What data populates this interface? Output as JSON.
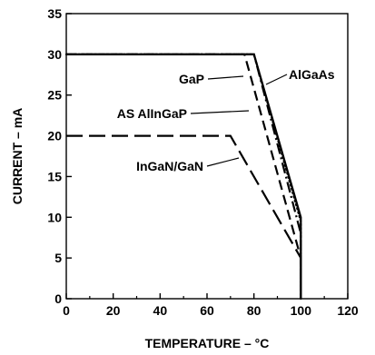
{
  "chart_data": {
    "type": "line",
    "xlabel": "TEMPERATURE – °C",
    "ylabel": "CURRENT – mA",
    "xlim": [
      0,
      120
    ],
    "ylim": [
      0,
      35
    ],
    "xticks": [
      0,
      20,
      40,
      60,
      80,
      100,
      120
    ],
    "yticks": [
      0,
      5,
      10,
      15,
      20,
      25,
      30,
      35
    ],
    "grid": false,
    "series": [
      {
        "name": "AlGaAs",
        "style": "solid",
        "color": "#000000",
        "points": [
          [
            0,
            30
          ],
          [
            80,
            30
          ],
          [
            100,
            10
          ],
          [
            100,
            0
          ]
        ]
      },
      {
        "name": "GaP",
        "style": "dotted",
        "color": "#000000",
        "points": [
          [
            0,
            30
          ],
          [
            80,
            30
          ],
          [
            100,
            9.5
          ],
          [
            100,
            0
          ]
        ]
      },
      {
        "name": "AS AlInGaP",
        "style": "dash-dot",
        "color": "#000000",
        "points": [
          [
            0,
            30
          ],
          [
            80,
            30
          ],
          [
            100,
            8
          ],
          [
            100,
            0
          ]
        ]
      },
      {
        "name": "InGaN/GaN",
        "style": "long-dash",
        "color": "#000000",
        "points": [
          [
            0,
            20
          ],
          [
            70,
            20
          ],
          [
            100,
            5
          ],
          [
            100,
            0
          ]
        ]
      },
      {
        "name": "",
        "style": "dashed",
        "color": "#000000",
        "points": [
          [
            0,
            30
          ],
          [
            76,
            30
          ],
          [
            100,
            5
          ],
          [
            100,
            0
          ]
        ]
      }
    ],
    "annotations": [
      {
        "text": "GaP",
        "series": "GaP"
      },
      {
        "text": "AlGaAs",
        "series": "AlGaAs"
      },
      {
        "text": "AS AlInGaP",
        "series": "AS AlInGaP"
      },
      {
        "text": "InGaN/GaN",
        "series": "InGaN/GaN"
      }
    ]
  }
}
